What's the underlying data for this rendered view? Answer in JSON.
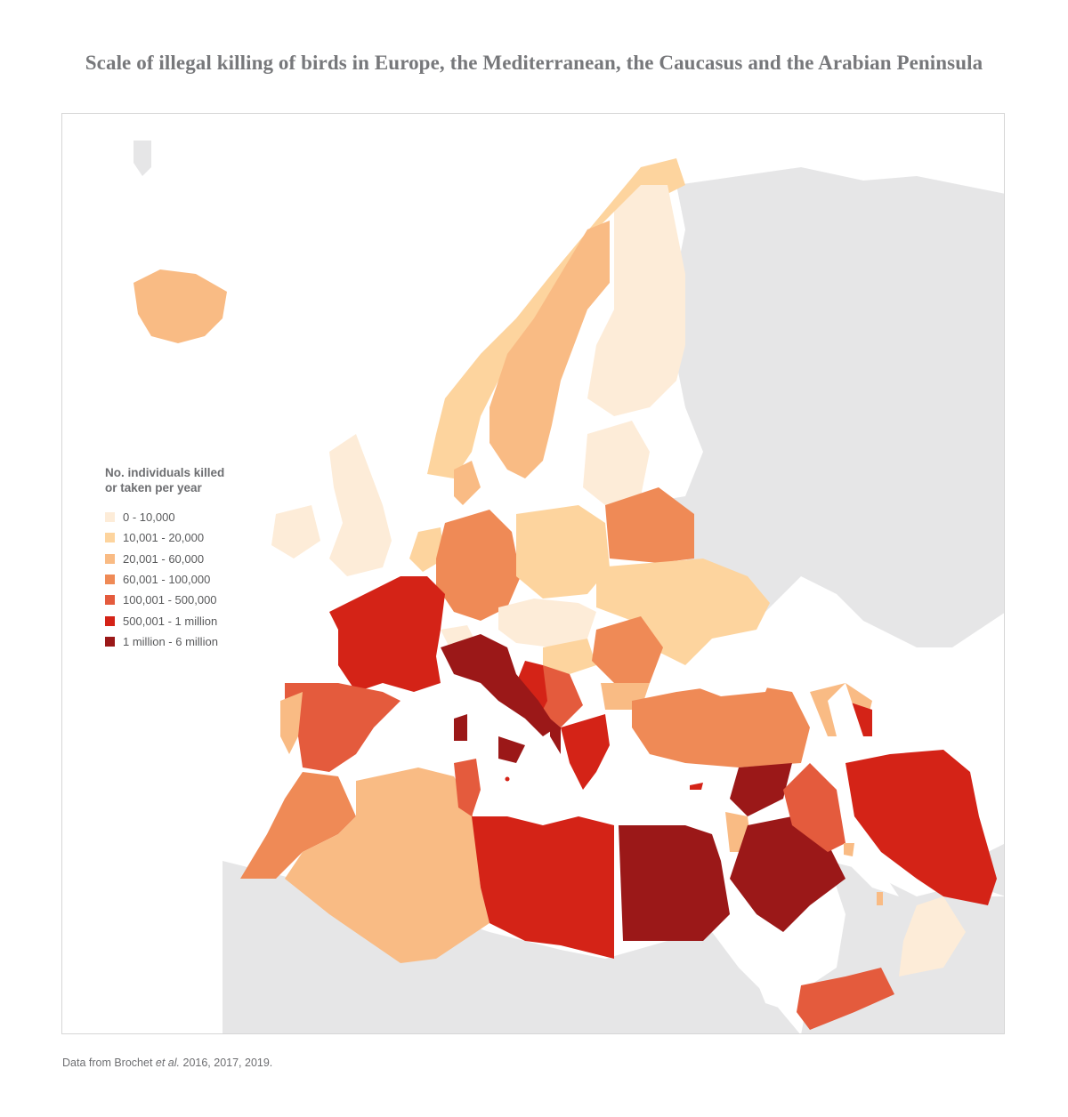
{
  "title": "Scale of illegal killing of birds in Europe, the Mediterranean, the Caucasus and the Arabian Peninsula",
  "legend": {
    "title_line1": "No. individuals killed",
    "title_line2": "or taken per year",
    "items": [
      {
        "label": "0 - 10,000",
        "color": "#fdecd8"
      },
      {
        "label": "10,001 - 20,000",
        "color": "#fdd49e"
      },
      {
        "label": "20,001 - 60,000",
        "color": "#f9bb84"
      },
      {
        "label": "60,001 - 100,000",
        "color": "#ef8a56"
      },
      {
        "label": "100,001 - 500,000",
        "color": "#e45b3d"
      },
      {
        "label": "500,001 - 1 million",
        "color": "#d42317"
      },
      {
        "label": "1 million - 6 million",
        "color": "#9b1818"
      }
    ]
  },
  "source": {
    "prefix": "Data from Brochet ",
    "italic": "et al.",
    "suffix": " 2016, 2017, 2019."
  },
  "colors": {
    "land_nodata": "#e6e6e7",
    "sea": "#ffffff",
    "frame_border": "#d6d6d6"
  }
}
